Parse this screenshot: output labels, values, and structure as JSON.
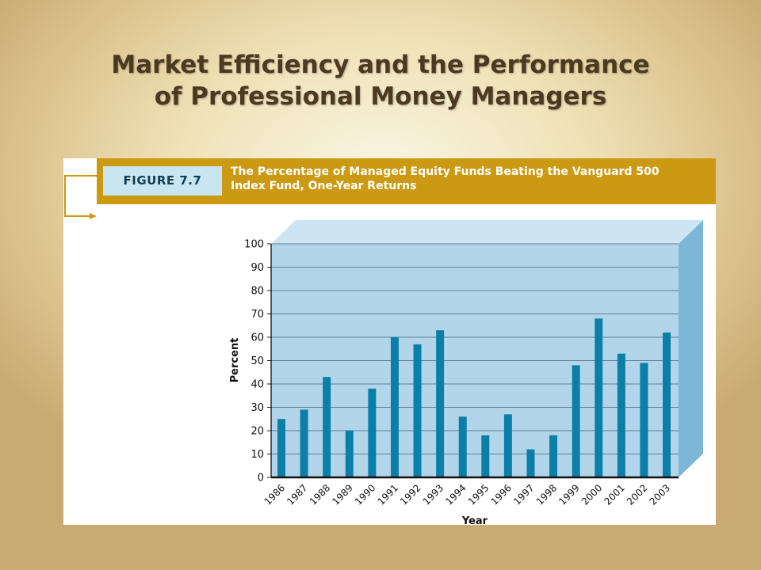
{
  "slide": {
    "title_line1": "Market Efficiency and the Performance",
    "title_line2": "of Professional Money Managers"
  },
  "figure": {
    "badge": "FIGURE 7.7",
    "caption_line1": "The Percentage of Managed Equity Funds Beating the Vanguard 500",
    "caption_line2": "Index Fund, One-Year Returns"
  },
  "colors": {
    "header": "#cc9a12",
    "badge_bg": "#c9e6f0",
    "bar": "#0b7fa8",
    "plot_back": "#b3d5e9",
    "plot_top": "#cde4f2",
    "plot_side": "#7db6d6"
  },
  "chart_data": {
    "type": "bar",
    "title": "",
    "xlabel": "Year",
    "ylabel": "Percent",
    "ylim": [
      0,
      100
    ],
    "yticks": [
      0,
      10,
      20,
      30,
      40,
      50,
      60,
      70,
      80,
      90,
      100
    ],
    "grid": true,
    "categories": [
      "1986",
      "1987",
      "1988",
      "1989",
      "1990",
      "1991",
      "1992",
      "1993",
      "1994",
      "1995",
      "1996",
      "1997",
      "1998",
      "1999",
      "2000",
      "2001",
      "2002",
      "2003"
    ],
    "values": [
      25,
      29,
      43,
      20,
      38,
      60,
      57,
      63,
      26,
      18,
      27,
      12,
      18,
      48,
      68,
      53,
      49,
      62
    ]
  }
}
